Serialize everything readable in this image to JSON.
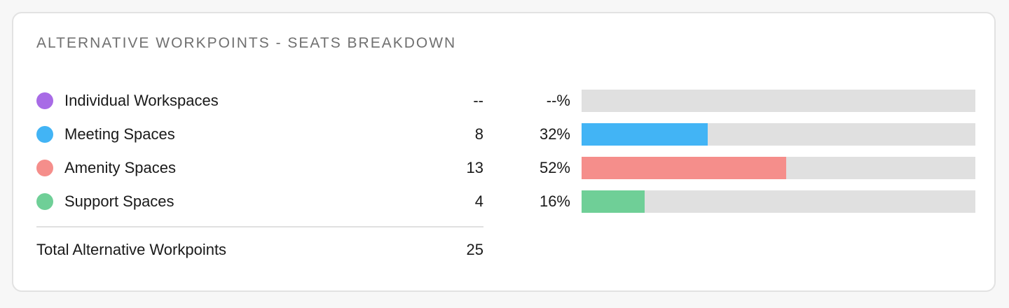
{
  "card": {
    "title": "ALTERNATIVE WORKPOINTS - SEATS BREAKDOWN"
  },
  "rows": [
    {
      "label": "Individual Workspaces",
      "count": "--",
      "percent_label": "--%",
      "fraction": 0,
      "color": "#a86be6"
    },
    {
      "label": "Meeting Spaces",
      "count": "8",
      "percent_label": "32%",
      "fraction": 0.32,
      "color": "#42b4f5"
    },
    {
      "label": "Amenity Spaces",
      "count": "13",
      "percent_label": "52%",
      "fraction": 0.52,
      "color": "#f58e8b"
    },
    {
      "label": "Support Spaces",
      "count": "4",
      "percent_label": "16%",
      "fraction": 0.16,
      "color": "#6fcf97"
    }
  ],
  "total": {
    "label": "Total Alternative Workpoints",
    "value": "25"
  }
}
